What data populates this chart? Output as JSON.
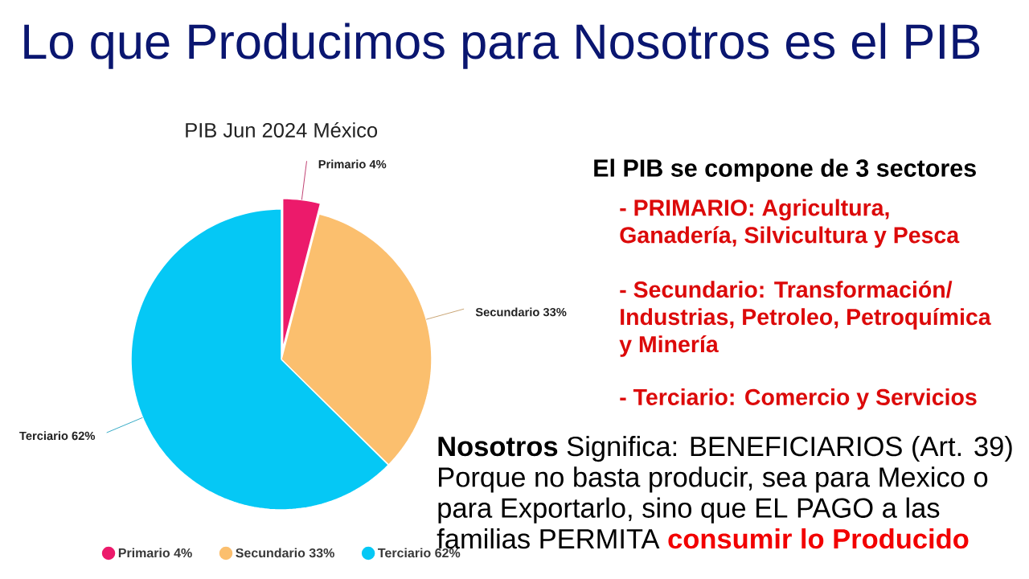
{
  "chart_data": {
    "type": "pie",
    "title": "Lo que Producimos para Nosotros es el PIB",
    "subtitle": "PIB Jun 2024 México",
    "categories": [
      "Primario 4%",
      "Secundario 33%",
      "Terciario 62%"
    ],
    "values": [
      4,
      33,
      62
    ],
    "colors": [
      "#ec1a6b",
      "#fbbf6e",
      "#05c8f5"
    ],
    "legend": "bottom",
    "annotations": [
      "El PIB se compone de 3 sectores",
      "- PRIMARIO: Agricultura, Ganadería, Silvicultura y Pesca",
      "- Secundario: Transformación/ Industrias, Petroleo, Petroquímica y Minería",
      "- Terciario: Comercio y Servicios",
      "**Nosotros** Significa: BENEFICIARIOS (Art. 39) Porque no basta producir, sea para Mexico o para Exportarlo, sino que EL PAGO a las",
      "familias PERMITA **consumir lo Producido**"
    ]
  }
}
